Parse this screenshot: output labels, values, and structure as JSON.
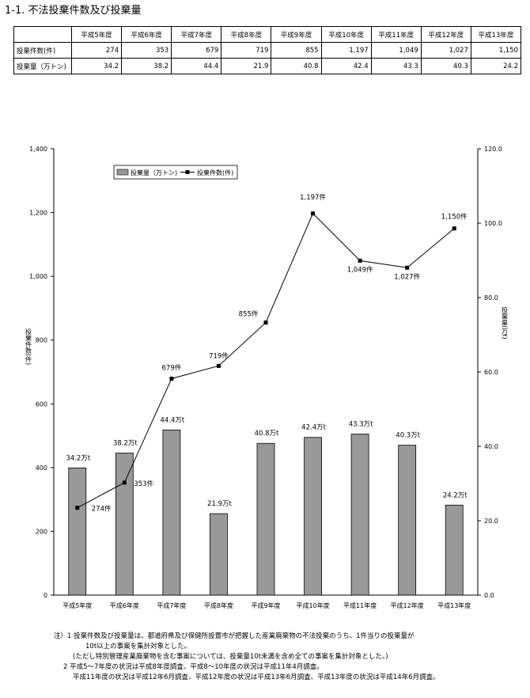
{
  "page_title": "1-1. 不法投棄件数及び投棄量",
  "table": {
    "corner": "",
    "columns": [
      "平成5年度",
      "平成6年度",
      "平成7年度",
      "平成8年度",
      "平成9年度",
      "平成10年度",
      "平成11年度",
      "平成12年度",
      "平成13年度"
    ],
    "rows": [
      {
        "label": "投棄件数(件)",
        "values": [
          "274",
          "353",
          "679",
          "719",
          "855",
          "1,197",
          "1,049",
          "1,027",
          "1,150"
        ]
      },
      {
        "label": "投棄量（万トン)",
        "values": [
          "34.2",
          "38.2",
          "44.4",
          "21.9",
          "40.8",
          "42.4",
          "43.3",
          "40.3",
          "24.2"
        ]
      }
    ]
  },
  "chart_data": {
    "type": "bar",
    "categories": [
      "平成5年度",
      "平成6年度",
      "平成7年度",
      "平成8年度",
      "平成9年度",
      "平成10年度",
      "平成11年度",
      "平成12年度",
      "平成13年度"
    ],
    "series": [
      {
        "name": "投棄量（万トン)",
        "type": "bar",
        "axis": "right",
        "values": [
          34.2,
          38.2,
          44.4,
          21.9,
          40.8,
          42.4,
          43.3,
          40.3,
          24.2
        ],
        "labels": [
          "34.2万t",
          "38.2万t",
          "44.4万t",
          "21.9万t",
          "40.8万t",
          "42.4万t",
          "43.3万t",
          "40.3万t",
          "24.2万t"
        ]
      },
      {
        "name": "投棄件数(件)",
        "type": "line",
        "axis": "left",
        "values": [
          274,
          353,
          679,
          719,
          855,
          1197,
          1049,
          1027,
          1150
        ],
        "labels": [
          "274件",
          "353件",
          "679件",
          "719件",
          "855件",
          "1,197件",
          "1,049件",
          "1,027件",
          "1,150件"
        ]
      }
    ],
    "left_axis": {
      "label": "投棄件数(件)",
      "min": 0,
      "max": 1400,
      "ticks": [
        0,
        200,
        400,
        600,
        800,
        1000,
        1200,
        1400
      ],
      "tick_labels": [
        "0",
        "200",
        "400",
        "600",
        "800",
        "1,000",
        "1,200",
        "1,400"
      ]
    },
    "right_axis": {
      "label": "投棄量(万t)",
      "min": 0,
      "max": 120,
      "ticks": [
        0,
        20,
        40,
        60,
        80,
        100,
        120
      ],
      "tick_labels": [
        "0.0",
        "20.0",
        "40.0",
        "60.0",
        "80.0",
        "100.0",
        "120.0"
      ]
    },
    "grid": false,
    "legend_position": "top-left",
    "colors": {
      "bar": "#999999",
      "line": "#000000"
    }
  },
  "notes": [
    "注）1  投棄件数及び投棄量は、都道府県及び保健所設置市が把握した産業廃棄物の不法投棄のうち、1件当りの投棄量が",
    "10t以上の事案を集計対象とした。",
    "(ただし特別管理産業廃棄物を含む事案については、投棄量10t未満を含め全ての事案を集計対象とした。)",
    "2  平成5～7年度の状況は平成8年度調査、平成8～10年度の状況は平成11年4月調査。",
    "平成11年度の状況は平成12年6月調査、平成12年度の状況は平成13年6月調査、平成13年度の状況は平成14年6月調査。"
  ]
}
